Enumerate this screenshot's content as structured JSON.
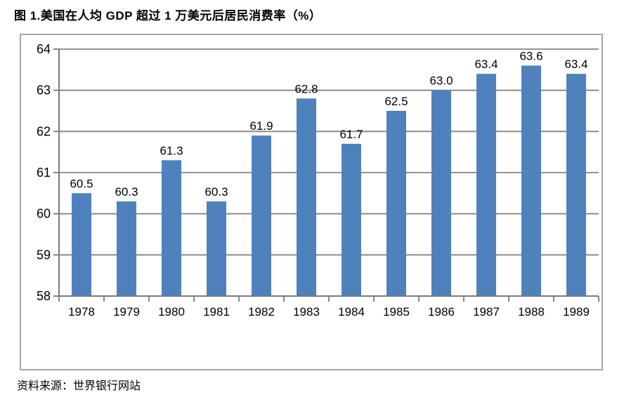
{
  "header": {
    "title": "图 1.美国在人均 GDP 超过 1 万美元后居民消费率（%）"
  },
  "footer": {
    "source": "资料来源：世界银行网站"
  },
  "chart_data": {
    "type": "bar",
    "title": "图 1.美国在人均 GDP 超过 1 万美元后居民消费率（%）",
    "categories": [
      "1978",
      "1979",
      "1980",
      "1981",
      "1982",
      "1983",
      "1984",
      "1985",
      "1986",
      "1987",
      "1988",
      "1989"
    ],
    "values": [
      60.5,
      60.3,
      61.3,
      60.3,
      61.9,
      62.8,
      61.7,
      62.5,
      63.0,
      63.4,
      63.6,
      63.4
    ],
    "value_labels": [
      "60.5",
      "60.3",
      "61.3",
      "60.3",
      "61.9",
      "62.8",
      "61.7",
      "62.5",
      "63.0",
      "63.4",
      "63.6",
      "63.4"
    ],
    "xlabel": "",
    "ylabel": "",
    "ylim": [
      58,
      64
    ],
    "yticks": [
      58,
      59,
      60,
      61,
      62,
      63,
      64
    ],
    "grid": true,
    "legend_position": "none",
    "source_note": "资料来源：世界银行网站",
    "colors": {
      "bar": "#4f81bd",
      "gridline": "#858585",
      "axis": "#7a7a7a",
      "frame_border": "#a6a6a6",
      "text": "#000000",
      "background": "#ffffff"
    }
  }
}
